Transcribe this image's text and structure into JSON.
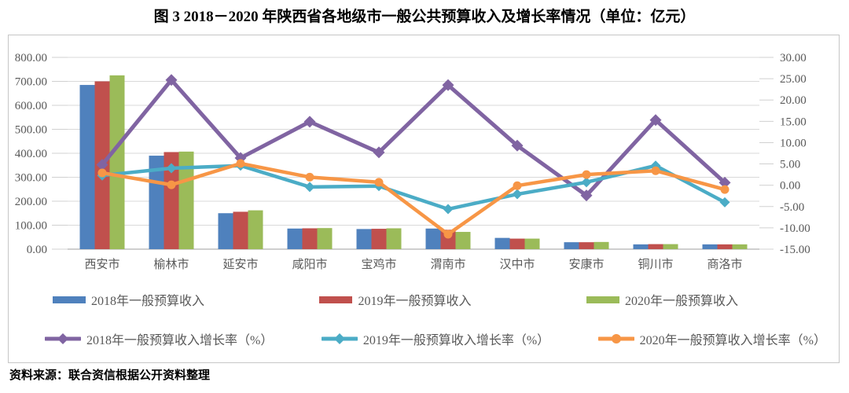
{
  "page": {
    "title": "图 3  2018－2020 年陕西省各地级市一般公共预算收入及增长率情况（单位：亿元）",
    "source": "资料来源：联合资信根据公开资料整理"
  },
  "chart_data": {
    "type": "combo bar+line, dual y-axis",
    "unit": "亿元",
    "categories": [
      "西安市",
      "榆林市",
      "延安市",
      "咸阳市",
      "宝鸡市",
      "渭南市",
      "汉中市",
      "安康市",
      "铜川市",
      "商洛市"
    ],
    "bar_series": [
      {
        "name": "2018年一般预算收入",
        "color": "#4F81BD",
        "values": [
          685,
          390,
          150,
          86,
          84,
          86,
          47,
          29,
          20,
          20
        ]
      },
      {
        "name": "2019年一般预算收入",
        "color": "#C0504D",
        "values": [
          700,
          405,
          156,
          87,
          85,
          81,
          44,
          29,
          21,
          20
        ]
      },
      {
        "name": "2020年一般预算收入",
        "color": "#9BBB59",
        "values": [
          725,
          407,
          162,
          88,
          87,
          72,
          44,
          30,
          21,
          20
        ]
      }
    ],
    "line_series": [
      {
        "name": "2018年一般预算收入增长率（%）",
        "color": "#8064A2",
        "marker": "diamond",
        "values": [
          4.8,
          24.7,
          6.4,
          14.9,
          7.7,
          23.5,
          9.3,
          -2.4,
          15.3,
          0.6
        ]
      },
      {
        "name": "2019年一般预算收入增长率（%）",
        "color": "#4BACC6",
        "marker": "diamond",
        "values": [
          2.3,
          4.0,
          4.6,
          -0.4,
          -0.2,
          -5.6,
          -2.1,
          0.7,
          4.6,
          -4.0
        ]
      },
      {
        "name": "2020年一般预算收入增长率（%）",
        "color": "#F79646",
        "marker": "circle",
        "values": [
          2.9,
          0.1,
          5.1,
          1.9,
          0.7,
          -11.5,
          -0.1,
          2.5,
          3.4,
          -1.0
        ]
      }
    ],
    "left_axis": {
      "min": 0,
      "max": 800,
      "ticks": [
        "0.00",
        "100.00",
        "200.00",
        "300.00",
        "400.00",
        "500.00",
        "600.00",
        "700.00",
        "800.00"
      ]
    },
    "right_axis": {
      "min": -15,
      "max": 30,
      "ticks": [
        "-15.00",
        "-10.00",
        "-5.00",
        "0.00",
        "5.00",
        "10.00",
        "15.00",
        "20.00",
        "25.00",
        "30.00"
      ]
    },
    "grid": true,
    "legend_position": "bottom",
    "colors": {
      "grid": "#d9d9d9",
      "axis": "#bfbfbf",
      "tick_label": "#595959"
    }
  }
}
